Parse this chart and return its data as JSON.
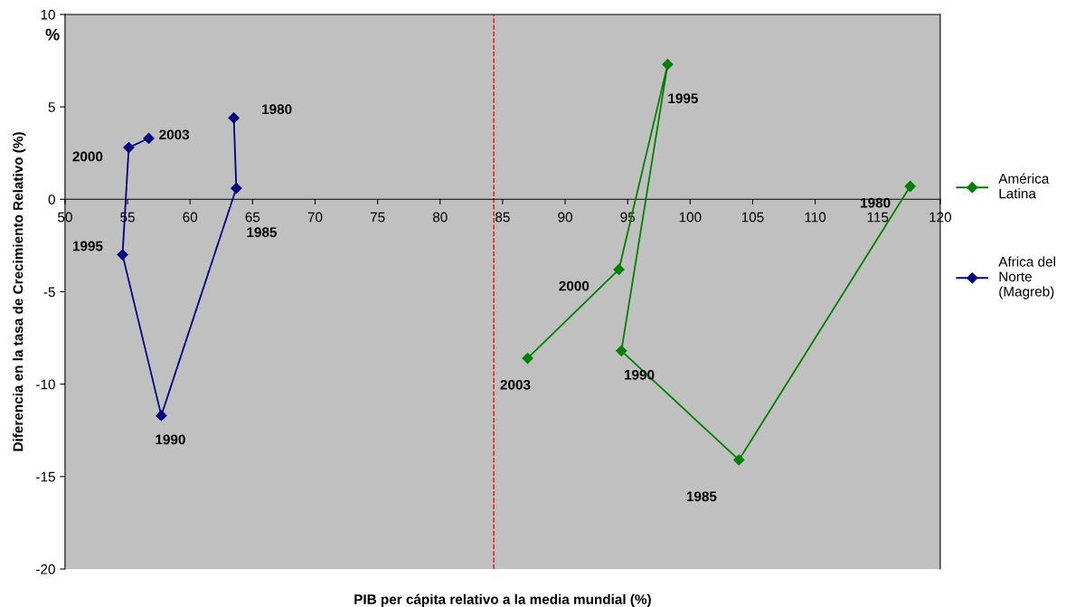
{
  "chart_data": {
    "type": "line",
    "xlabel": "PIB per cápita relativo a la media mundial (%)",
    "ylabel": "Diferencia en la tasa de Crecimiento Relativo (%)",
    "series": [
      {
        "name": "América\nLatina",
        "color": "#008000",
        "x": [
          117.6,
          103.9,
          94.5,
          98.2,
          94.3,
          87.0
        ],
        "values": [
          0.7,
          -14.1,
          -8.2,
          7.3,
          -3.8,
          -8.6
        ]
      },
      {
        "name": "Africa del\nNorte\n(Magreb)",
        "color": "#000080",
        "x": [
          63.5,
          63.7,
          57.7,
          54.6,
          55.1,
          56.7
        ],
        "values": [
          4.4,
          0.6,
          -11.7,
          -3.0,
          2.8,
          3.3
        ]
      }
    ],
    "annotations": [
      {
        "text": "1980",
        "x": 117.6,
        "y": 0.7
      },
      {
        "text": "1985",
        "x": 103.9,
        "y": -14.1
      },
      {
        "text": "1990",
        "x": 94.5,
        "y": -8.2
      },
      {
        "text": "1995",
        "x": 98.2,
        "y": 7.3
      },
      {
        "text": "2000",
        "x": 94.3,
        "y": -3.8
      },
      {
        "text": "2003",
        "x": 87.0,
        "y": -8.6
      },
      {
        "text": "1980",
        "x": 63.5,
        "y": 4.4
      },
      {
        "text": "1985",
        "x": 63.7,
        "y": 0.6
      },
      {
        "text": "1990",
        "x": 57.7,
        "y": -11.7
      },
      {
        "text": "1995",
        "x": 54.6,
        "y": -3.0
      },
      {
        "text": "2000",
        "x": 55.1,
        "y": 2.8
      },
      {
        "text": "2003",
        "x": 56.7,
        "y": 3.3
      },
      "%"
    ],
    "ref_lines": [
      {
        "axis": "x",
        "value": 84.3,
        "color": "#ff0000",
        "line_style": "dashed"
      }
    ],
    "xlim": [
      50,
      120
    ],
    "xticks": [
      50,
      55,
      60,
      65,
      70,
      75,
      80,
      85,
      90,
      95,
      100,
      105,
      110,
      115,
      120
    ],
    "ylim": [
      -20,
      10
    ],
    "yticks": [
      -20,
      -15,
      -10,
      -5,
      0,
      5,
      10
    ],
    "marker": "diamond",
    "line_style": "solid",
    "grid": false,
    "legend": "right"
  }
}
